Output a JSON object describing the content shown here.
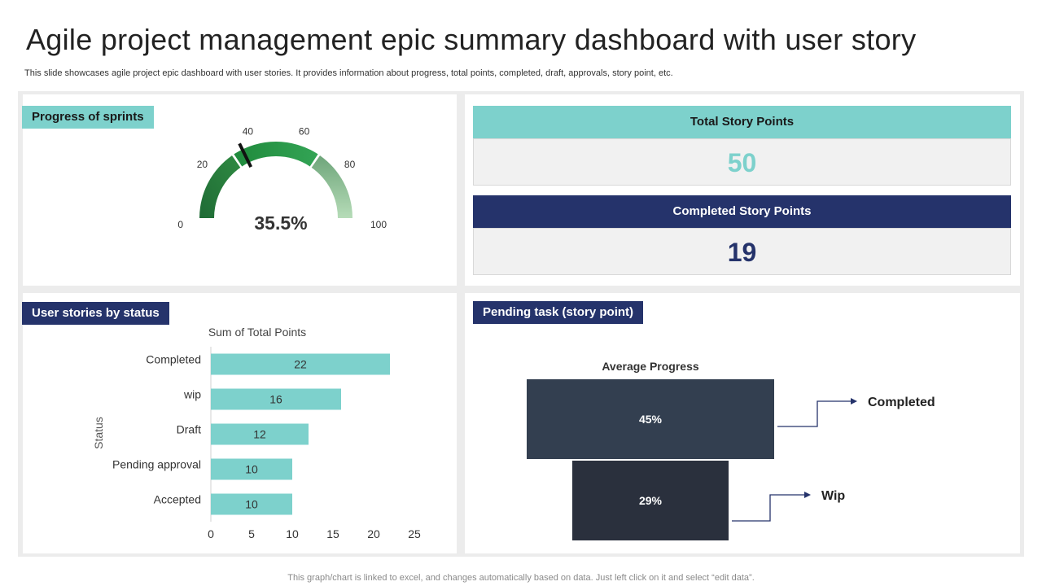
{
  "header": {
    "title": "Agile project management epic summary dashboard with user story",
    "subtitle": "This slide showcases agile project epic dashboard with user stories. It provides information about progress, total points, completed, draft, approvals, story point, etc."
  },
  "footer": {
    "note": "This graph/chart is linked to excel, and changes automatically based on data. Just left click on it and select “edit data”."
  },
  "sprints": {
    "label": "Progress of sprints",
    "value_text": "35.5%"
  },
  "kpis": {
    "total_label": "Total Story Points",
    "total_value": "50",
    "completed_label": "Completed Story Points",
    "completed_value": "19"
  },
  "status_panel": {
    "label": "User stories by status"
  },
  "pending_panel": {
    "label": "Pending task (story point)"
  },
  "colors": {
    "teal": "#7dd1cc",
    "navy": "#25336b",
    "funnel_top": "#333f50",
    "funnel_bottom": "#2a303d",
    "gauge_dark": "#2f7d3c",
    "gauge_mid": "#2a9a48",
    "gauge_light": "#a6cfaa"
  },
  "chart_data": [
    {
      "type": "gauge",
      "title": "Progress of sprints",
      "value": 35.5,
      "range": [
        0,
        100
      ],
      "ticks": [
        0,
        20,
        40,
        60,
        80,
        100
      ],
      "value_label": "35.5%"
    },
    {
      "type": "bar",
      "orientation": "horizontal",
      "title": "Sum of Total Points",
      "ylabel": "Status",
      "categories": [
        "Completed",
        "wip",
        "Draft",
        "Pending approval",
        "Accepted"
      ],
      "values": [
        22,
        16,
        12,
        10,
        10
      ],
      "xlim": [
        0,
        25
      ],
      "xticks": [
        0,
        5,
        10,
        15,
        20,
        25
      ]
    },
    {
      "type": "funnel",
      "title": "Average Progress",
      "stages": [
        {
          "name": "Completed",
          "value": 45,
          "label": "45%"
        },
        {
          "name": "Wip",
          "value": 29,
          "label": "29%"
        }
      ]
    }
  ]
}
